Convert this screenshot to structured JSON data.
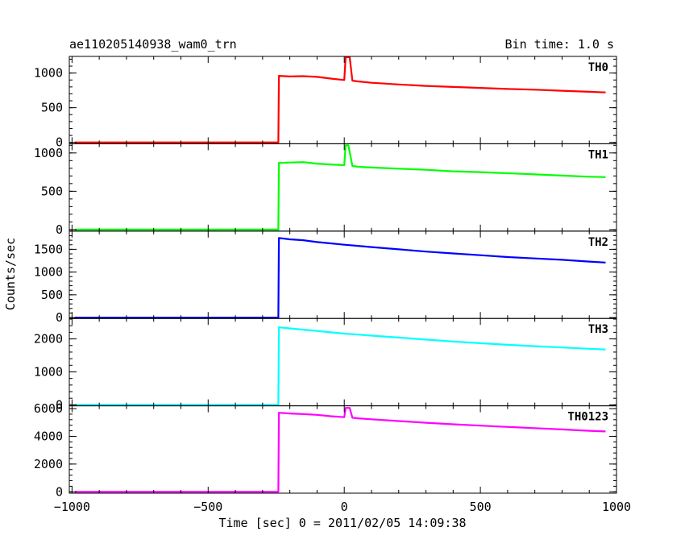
{
  "header": {
    "title": "ae110205140938_wam0_trn",
    "bin_time": "Bin time: 1.0 s"
  },
  "axes": {
    "xlabel": "Time [sec] 0 = 2011/02/05 14:09:38",
    "ylabel": "Counts/sec"
  },
  "chart_data": {
    "type": "line",
    "title": "ae110205140938_wam0_trn",
    "xlabel": "Time [sec] 0 = 2011/02/05 14:09:38",
    "ylabel": "Counts/sec",
    "xlim": [
      -1010,
      1000
    ],
    "x_ticks": [
      -1000,
      -500,
      0,
      500,
      1000
    ],
    "x_tick_labels": [
      "−1000",
      "−500",
      "0",
      "500",
      "1000"
    ],
    "grid": false,
    "panels": [
      {
        "name": "TH0",
        "color": "#ff0000",
        "ylim": [
          -20,
          1240
        ],
        "y_ticks": [
          0,
          500,
          1000
        ],
        "y_tick_labels": [
          "0",
          "500",
          "1000"
        ],
        "points": [
          [
            -990,
            0
          ],
          [
            -242,
            0
          ],
          [
            -240,
            960
          ],
          [
            -200,
            950
          ],
          [
            -150,
            955
          ],
          [
            -100,
            945
          ],
          [
            -50,
            920
          ],
          [
            0,
            900
          ],
          [
            5,
            1230
          ],
          [
            20,
            1230
          ],
          [
            30,
            890
          ],
          [
            50,
            880
          ],
          [
            100,
            860
          ],
          [
            200,
            835
          ],
          [
            300,
            815
          ],
          [
            400,
            800
          ],
          [
            500,
            785
          ],
          [
            600,
            770
          ],
          [
            700,
            760
          ],
          [
            800,
            745
          ],
          [
            900,
            730
          ],
          [
            960,
            720
          ]
        ]
      },
      {
        "name": "TH1",
        "color": "#00ff00",
        "ylim": [
          -20,
          1120
        ],
        "y_ticks": [
          0,
          500,
          1000
        ],
        "y_tick_labels": [
          "0",
          "500",
          "1000"
        ],
        "points": [
          [
            -990,
            0
          ],
          [
            -242,
            0
          ],
          [
            -240,
            870
          ],
          [
            -200,
            875
          ],
          [
            -150,
            880
          ],
          [
            -100,
            860
          ],
          [
            -50,
            850
          ],
          [
            0,
            840
          ],
          [
            5,
            1100
          ],
          [
            15,
            1100
          ],
          [
            30,
            830
          ],
          [
            50,
            820
          ],
          [
            100,
            810
          ],
          [
            200,
            795
          ],
          [
            300,
            780
          ],
          [
            400,
            760
          ],
          [
            500,
            750
          ],
          [
            600,
            735
          ],
          [
            700,
            720
          ],
          [
            800,
            705
          ],
          [
            900,
            690
          ],
          [
            960,
            685
          ]
        ]
      },
      {
        "name": "TH2",
        "color": "#0000ff",
        "ylim": [
          -20,
          1900
        ],
        "y_ticks": [
          0,
          500,
          1000,
          1500
        ],
        "y_tick_labels": [
          "0",
          "500",
          "1000",
          "1500"
        ],
        "points": [
          [
            -990,
            0
          ],
          [
            -242,
            0
          ],
          [
            -240,
            1750
          ],
          [
            -200,
            1720
          ],
          [
            -150,
            1700
          ],
          [
            -100,
            1660
          ],
          [
            -50,
            1630
          ],
          [
            0,
            1600
          ],
          [
            50,
            1575
          ],
          [
            100,
            1550
          ],
          [
            200,
            1500
          ],
          [
            300,
            1450
          ],
          [
            400,
            1410
          ],
          [
            500,
            1370
          ],
          [
            600,
            1330
          ],
          [
            700,
            1300
          ],
          [
            800,
            1270
          ],
          [
            900,
            1230
          ],
          [
            960,
            1210
          ]
        ]
      },
      {
        "name": "TH3",
        "color": "#00ffff",
        "ylim": [
          -30,
          2620
        ],
        "y_ticks": [
          0,
          1000,
          2000
        ],
        "y_tick_labels": [
          "0",
          "1000",
          "2000"
        ],
        "points": [
          [
            -990,
            0
          ],
          [
            -242,
            0
          ],
          [
            -240,
            2350
          ],
          [
            -200,
            2320
          ],
          [
            -150,
            2280
          ],
          [
            -100,
            2240
          ],
          [
            -50,
            2200
          ],
          [
            0,
            2160
          ],
          [
            50,
            2130
          ],
          [
            100,
            2100
          ],
          [
            200,
            2040
          ],
          [
            300,
            1980
          ],
          [
            400,
            1920
          ],
          [
            500,
            1870
          ],
          [
            600,
            1820
          ],
          [
            700,
            1780
          ],
          [
            800,
            1740
          ],
          [
            900,
            1700
          ],
          [
            960,
            1680
          ]
        ]
      },
      {
        "name": "TH0123",
        "color": "#ff00ff",
        "ylim": [
          -100,
          6200
        ],
        "y_ticks": [
          0,
          2000,
          4000,
          6000
        ],
        "y_tick_labels": [
          "0",
          "2000",
          "4000",
          "6000"
        ],
        "points": [
          [
            -990,
            0
          ],
          [
            -242,
            0
          ],
          [
            -240,
            5700
          ],
          [
            -200,
            5650
          ],
          [
            -150,
            5600
          ],
          [
            -100,
            5550
          ],
          [
            -50,
            5450
          ],
          [
            0,
            5380
          ],
          [
            5,
            6050
          ],
          [
            20,
            6050
          ],
          [
            30,
            5340
          ],
          [
            50,
            5300
          ],
          [
            100,
            5230
          ],
          [
            200,
            5100
          ],
          [
            300,
            4980
          ],
          [
            400,
            4870
          ],
          [
            500,
            4770
          ],
          [
            600,
            4680
          ],
          [
            700,
            4590
          ],
          [
            800,
            4500
          ],
          [
            900,
            4400
          ],
          [
            960,
            4350
          ]
        ]
      }
    ]
  }
}
